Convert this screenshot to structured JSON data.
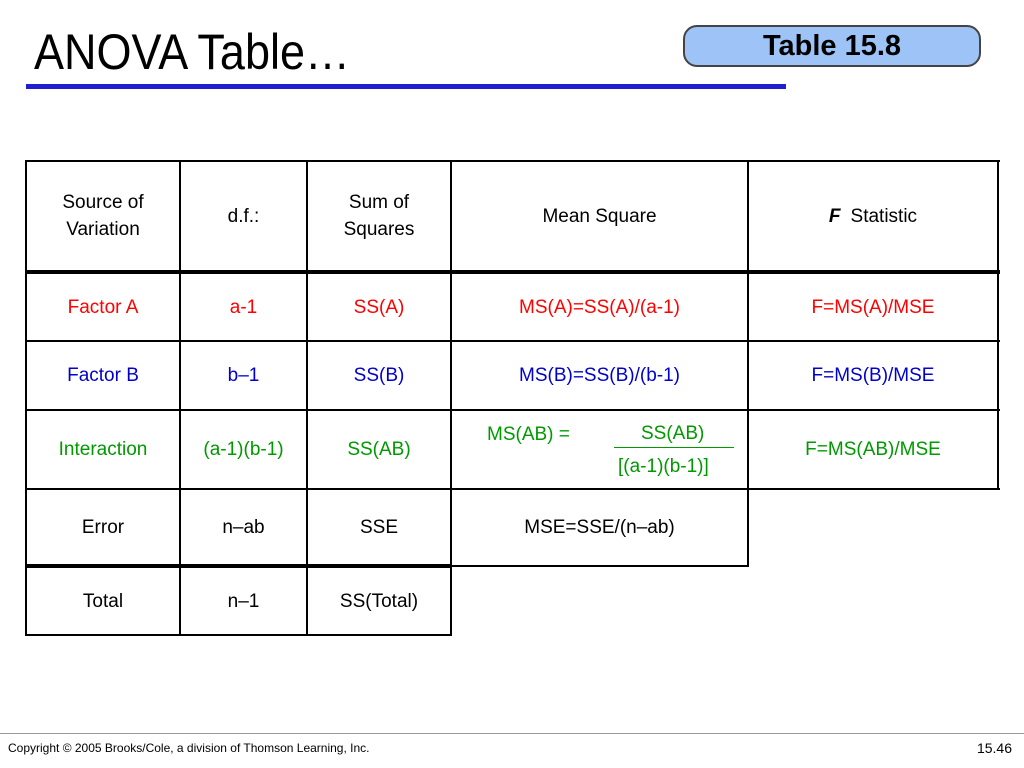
{
  "slide": {
    "title": "ANOVA Table…",
    "badge": "Table 15.8"
  },
  "table": {
    "headers": {
      "source": "Source of Variation",
      "df": "d.f.:",
      "ss": "Sum of Squares",
      "ms": "Mean Square",
      "f_italic": "F",
      "f_rest": "Statistic"
    },
    "rows": {
      "factor_a": {
        "source": "Factor A",
        "df": "a-1",
        "ss": "SS(A)",
        "ms": "MS(A)=SS(A)/(a-1)",
        "f": "F=MS(A)/MSE"
      },
      "factor_b": {
        "source": "Factor B",
        "df": "b–1",
        "ss": "SS(B)",
        "ms": "MS(B)=SS(B)/(b-1)",
        "f": "F=MS(B)/MSE"
      },
      "interaction": {
        "source": "Interaction",
        "df": "(a-1)(b-1)",
        "ss": "SS(AB)",
        "ms_lhs": "MS(AB) =",
        "ms_num": "SS(AB)",
        "ms_den": "[(a-1)(b-1)]",
        "f": "F=MS(AB)/MSE"
      },
      "error": {
        "source": "Error",
        "df": "n–ab",
        "ss": "SSE",
        "ms": "MSE=SSE/(n–ab)"
      },
      "total": {
        "source": "Total",
        "df": "n–1",
        "ss": "SS(Total)"
      }
    },
    "colors": {
      "factor_a": "#ff0000",
      "factor_b": "#0000cc",
      "interaction": "#009900"
    }
  },
  "footer": {
    "copyright": "Copyright © 2005 Brooks/Cole, a division of Thomson Learning, Inc.",
    "page": "15.46"
  }
}
